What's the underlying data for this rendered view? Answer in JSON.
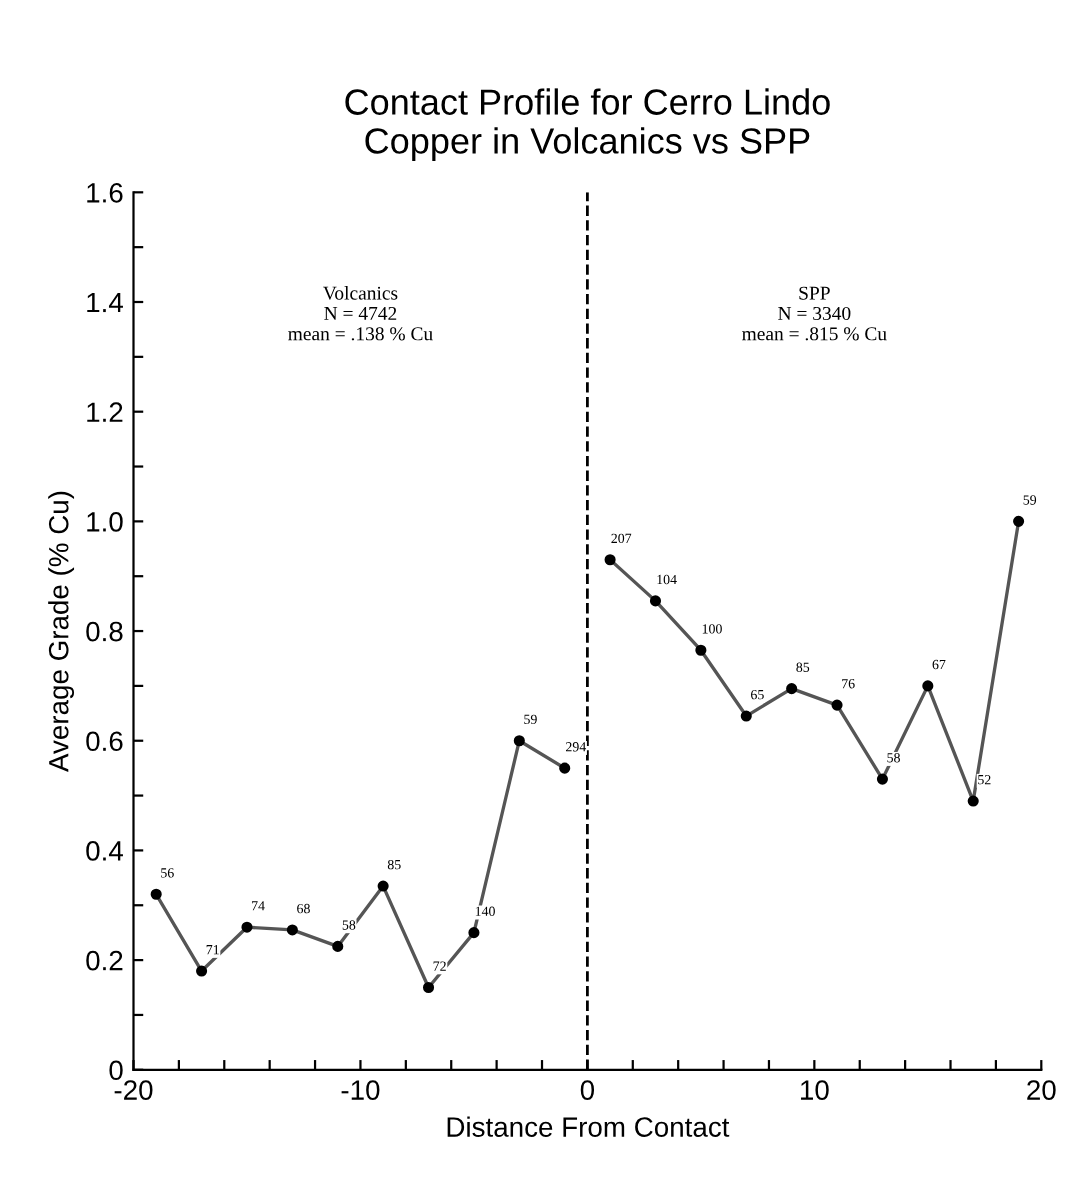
{
  "chart_data": {
    "type": "line",
    "title": "Contact Profile for Cerro Lindo\nCopper in Volcanics vs SPP",
    "xlabel": "Distance From Contact",
    "ylabel": "Average Grade (% Cu)",
    "series": [
      {
        "color": "#000000",
        "x": [
          -19,
          -17,
          -15,
          -13,
          -11,
          -9,
          -7,
          -5,
          -3,
          -1
        ],
        "values": [
          0.32,
          0.18,
          0.26,
          0.255,
          0.225,
          0.335,
          0.15,
          0.25,
          0.6,
          0.55
        ]
      },
      {
        "color": "#000000",
        "x": [
          1,
          3,
          5,
          7,
          9,
          11,
          13,
          15,
          17,
          19
        ],
        "values": [
          0.93,
          0.855,
          0.765,
          0.645,
          0.695,
          0.665,
          0.53,
          0.7,
          0.49,
          1.0
        ]
      }
    ],
    "marker": "circle",
    "line_style": "solid",
    "grid": false,
    "legend": false,
    "xlim": [
      -20,
      20
    ],
    "xticks": [
      -20,
      {
        "value": -18,
        "label": null
      },
      {
        "value": -16,
        "label": null
      },
      {
        "value": -14,
        "label": null
      },
      {
        "value": -12,
        "label": null
      },
      -10,
      {
        "value": -8,
        "label": null
      },
      {
        "value": -6,
        "label": null
      },
      {
        "value": -4,
        "label": null
      },
      {
        "value": -2,
        "label": null
      },
      0,
      {
        "value": 2,
        "label": null
      },
      {
        "value": 4,
        "label": null
      },
      {
        "value": 6,
        "label": null
      },
      {
        "value": 8,
        "label": null
      },
      10,
      {
        "value": 12,
        "label": null
      },
      {
        "value": 14,
        "label": null
      },
      {
        "value": 16,
        "label": null
      },
      {
        "value": 18,
        "label": null
      },
      20
    ],
    "ylim": [
      0,
      1.6
    ],
    "yticks": [
      0,
      {
        "value": 0.1,
        "label": null
      },
      0.2,
      {
        "value": 0.3,
        "label": null
      },
      0.4,
      {
        "value": 0.5,
        "label": null
      },
      0.6,
      {
        "value": 0.7,
        "label": null
      },
      0.8,
      {
        "value": 0.9,
        "label": null
      },
      {
        "value": 1.0,
        "label": "1.0"
      },
      {
        "value": 1.1,
        "label": null
      },
      1.2,
      {
        "value": 1.3,
        "label": null
      },
      1.4,
      {
        "value": 1.5,
        "label": null
      },
      1.6
    ],
    "ref_lines": [
      {
        "axis": "x",
        "value": 0,
        "label": null,
        "color": "#000000",
        "line_style": "dashed"
      }
    ],
    "annotations": [
      "Volcanics\nN = 4742\nmean = .138 % Cu",
      "SPP\nN = 3340\nmean = .815 % Cu",
      {
        "text": "56",
        "x": -19,
        "y": 0.32
      },
      {
        "text": "71",
        "x": -17,
        "y": 0.18
      },
      {
        "text": "74",
        "x": -15,
        "y": 0.26
      },
      {
        "text": "68",
        "x": -13,
        "y": 0.255
      },
      {
        "text": "58",
        "x": -11,
        "y": 0.225
      },
      {
        "text": "85",
        "x": -9,
        "y": 0.335
      },
      {
        "text": "72",
        "x": -7,
        "y": 0.15
      },
      {
        "text": "140",
        "x": -5,
        "y": 0.25
      },
      {
        "text": "59",
        "x": -3,
        "y": 0.6
      },
      {
        "text": "294",
        "x": -1,
        "y": 0.55
      },
      {
        "text": "207",
        "x": 1,
        "y": 0.93
      },
      {
        "text": "104",
        "x": 3,
        "y": 0.855
      },
      {
        "text": "100",
        "x": 5,
        "y": 0.765
      },
      {
        "text": "65",
        "x": 7,
        "y": 0.645
      },
      {
        "text": "85",
        "x": 9,
        "y": 0.695
      },
      {
        "text": "76",
        "x": 11,
        "y": 0.665
      },
      {
        "text": "58",
        "x": 13,
        "y": 0.53
      },
      {
        "text": "67",
        "x": 15,
        "y": 0.7
      },
      {
        "text": "52",
        "x": 17,
        "y": 0.49
      },
      {
        "text": "59",
        "x": 19,
        "y": 1.0
      }
    ]
  }
}
